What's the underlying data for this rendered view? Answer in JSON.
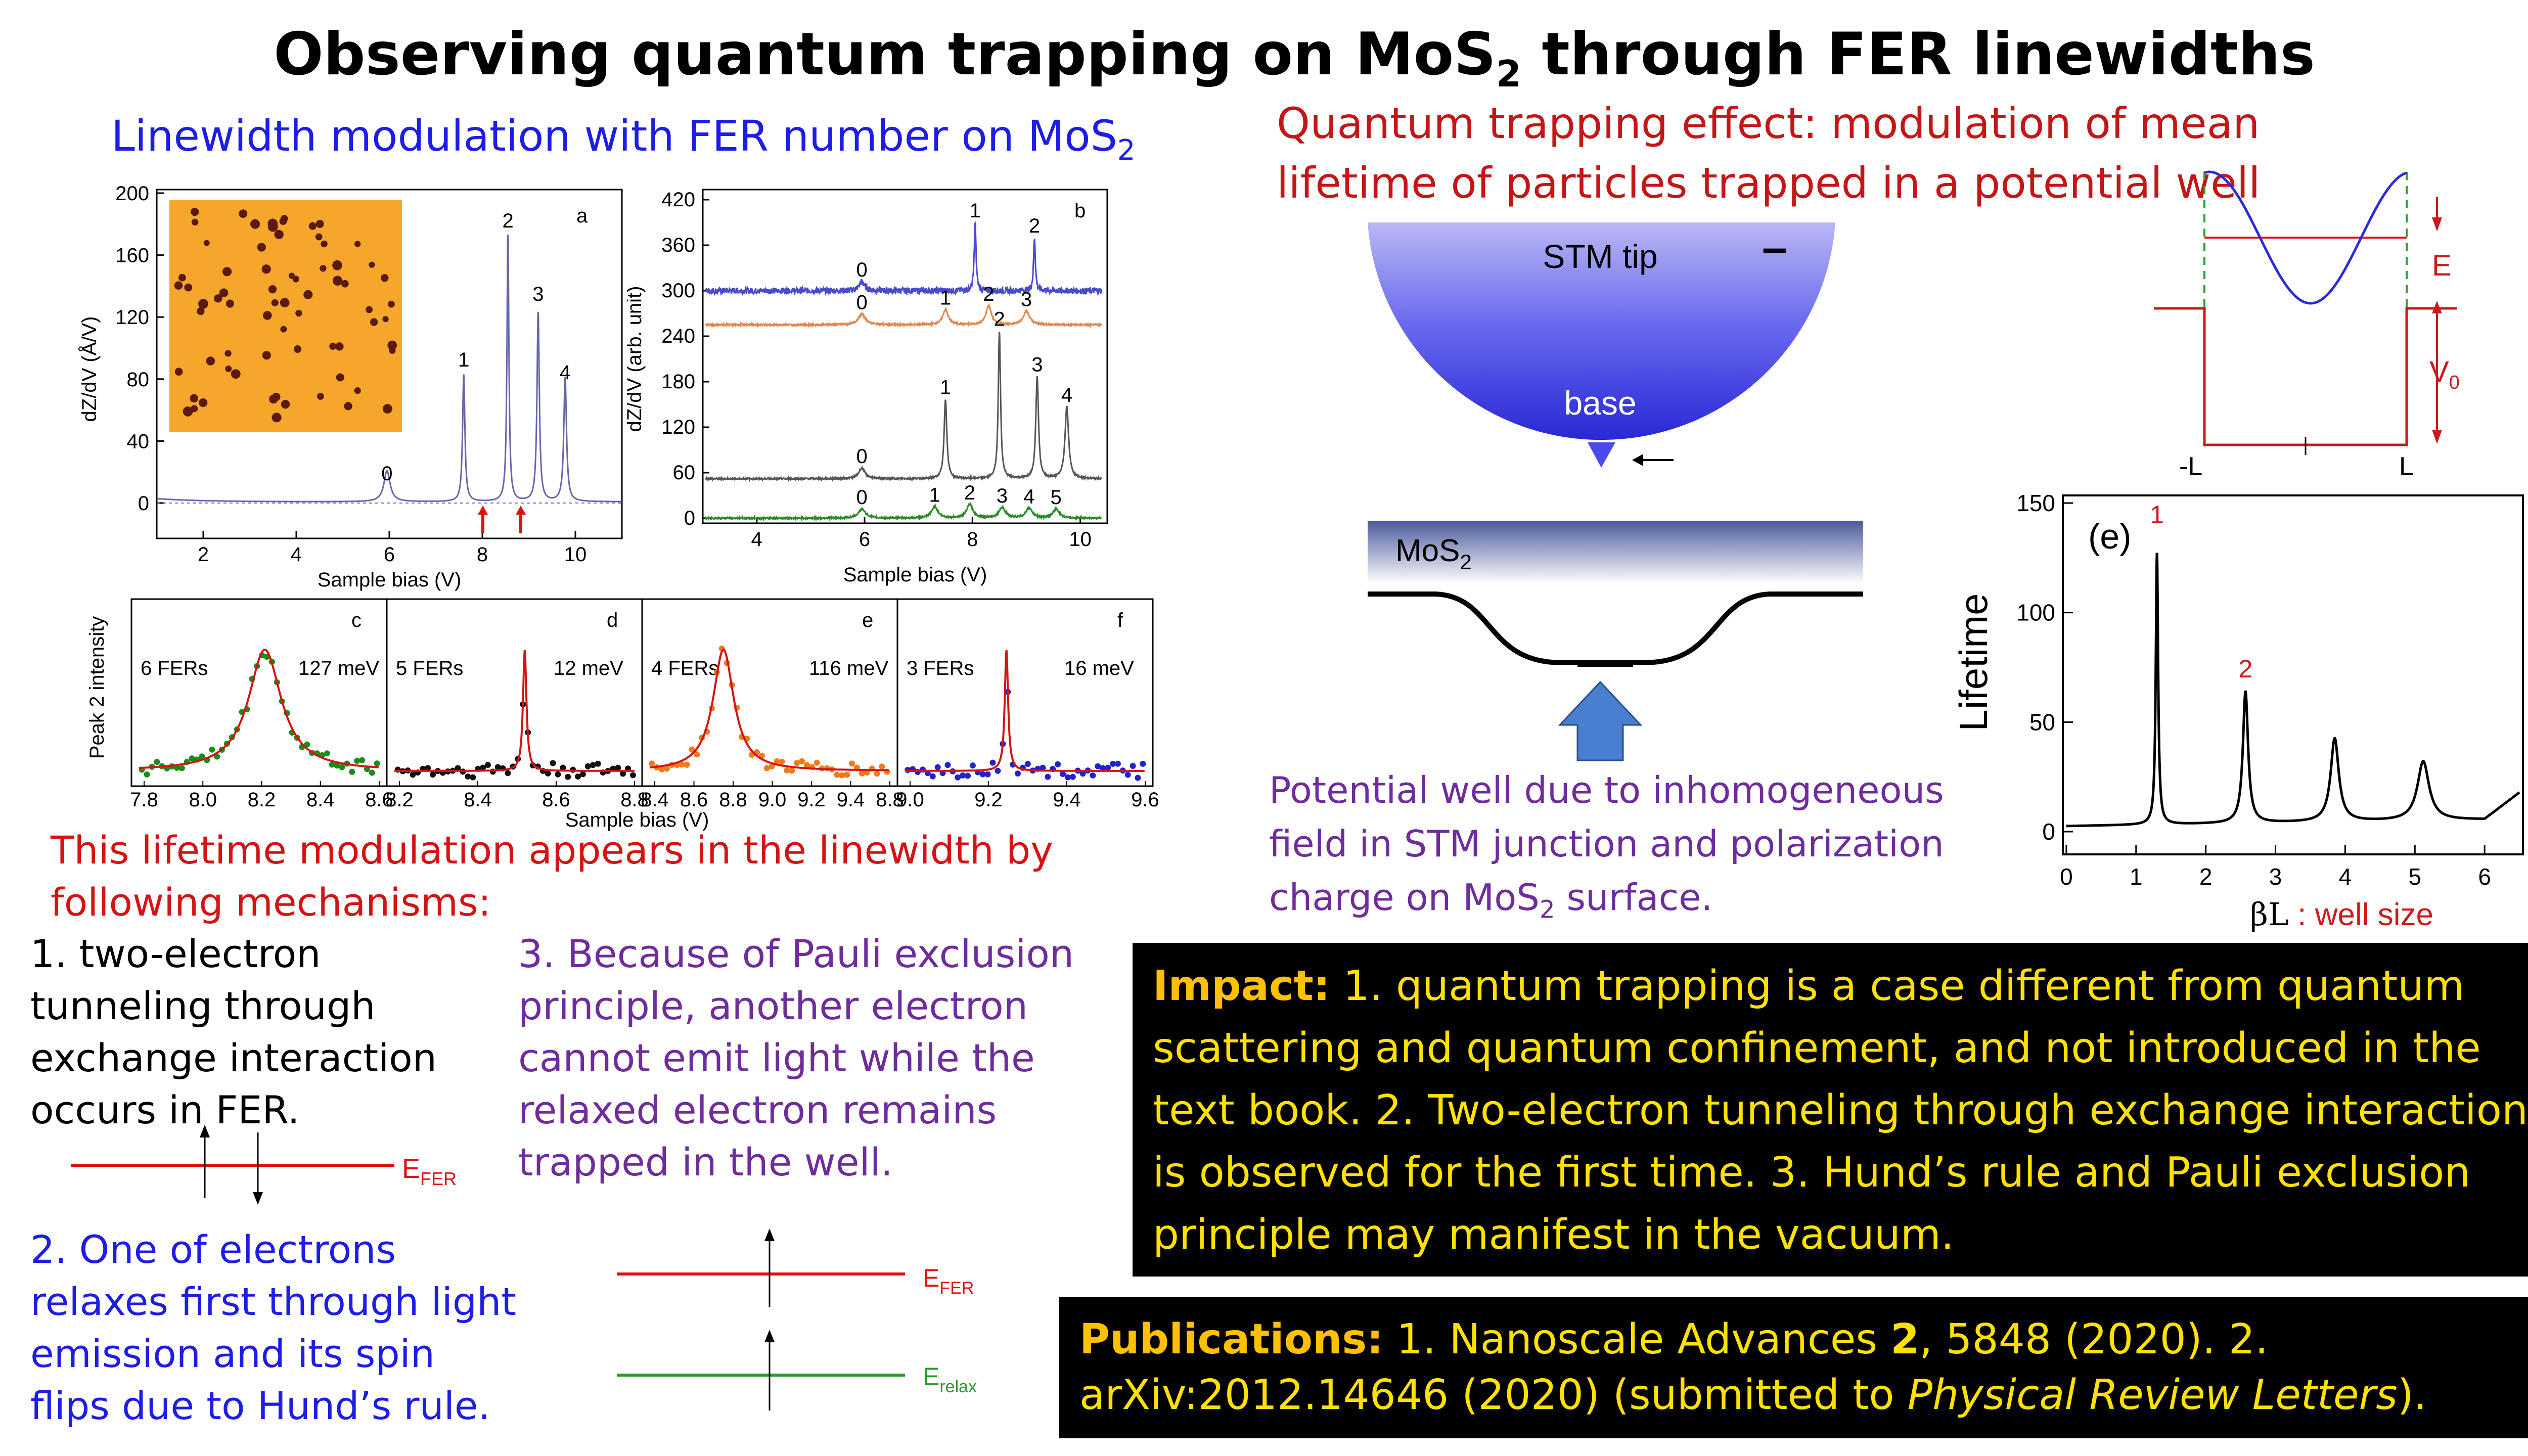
{
  "title": {
    "main": "Observing quantum trapping on MoS",
    "sub": "2",
    "rest": " through FER linewidths"
  },
  "left_heading": {
    "text": "Linewidth modulation with FER number on MoS",
    "sub": "2"
  },
  "panel_a": {
    "letter": "a",
    "ylabel": "dZ/dV (Å/V)",
    "xlabel": "Sample bias (V)",
    "yticks": [
      "200",
      "160",
      "120",
      "80",
      "40",
      "0"
    ],
    "xticks": [
      "2",
      "4",
      "6",
      "8",
      "10"
    ],
    "peaks": [
      "0",
      "1",
      "2",
      "3",
      "4"
    ]
  },
  "panel_b": {
    "letter": "b",
    "ylabel": "dZ/dV (arb. unit)",
    "xlabel": "Sample bias (V)",
    "yticks": [
      "420",
      "360",
      "300",
      "240",
      "180",
      "120",
      "60",
      "0"
    ],
    "xticks": [
      "4",
      "6",
      "8",
      "10"
    ],
    "peaks_top": [
      "0",
      "1",
      "2"
    ],
    "peaks_orange": [
      "0",
      "1",
      "2",
      "3"
    ],
    "peaks_black": [
      "0",
      "1",
      "2",
      "3",
      "4"
    ],
    "peaks_green": [
      "0",
      "1",
      "2",
      "3",
      "4",
      "5"
    ]
  },
  "small_panels": {
    "ylabel": "Peak 2 intensity",
    "xlabel": "Sample bias (V)",
    "panels": [
      {
        "letter": "c",
        "fers": "6 FERs",
        "width": "127 meV",
        "xticks": [
          "7.8",
          "8.0",
          "8.2",
          "8.4",
          "8.6"
        ],
        "color": "#1a8c1a"
      },
      {
        "letter": "d",
        "fers": "5 FERs",
        "width": "12 meV",
        "xticks": [
          "8.2",
          "8.4",
          "8.6",
          "8.8"
        ],
        "color": "#111111"
      },
      {
        "letter": "e",
        "fers": "4 FERs",
        "width": "116 meV",
        "xticks": [
          "8.4",
          "8.6",
          "8.8",
          "9.0",
          "9.2",
          "9.4",
          "8.8"
        ],
        "color": "#f07a1a"
      },
      {
        "letter": "f",
        "fers": "3 FERs",
        "width": "16 meV",
        "xticks": [
          "9.0",
          "9.2",
          "9.4",
          "9.6"
        ],
        "color": "#2222cc"
      }
    ]
  },
  "mechanisms_intro": "This lifetime modulation appears in the linewidth by following mechanisms:",
  "mech1": "1. two-electron tunneling through exchange interaction occurs in FER.",
  "mech2": "2. One  of electrons relaxes first through light emission and its spin flips due to Hund’s rule.",
  "mech3": "3. Because of Pauli exclusion principle, another electron cannot emit light while the relaxed electron remains trapped in the well.",
  "levels": {
    "e_fer": "E",
    "fer_sub": "FER",
    "e_relax": "E",
    "relax_sub": "relax"
  },
  "right_heading": "Quantum trapping effect: modulation of mean lifetime of particles trapped in a potential well",
  "stm": {
    "tip": "STM tip",
    "minus": "–",
    "base": "base",
    "mos2": "MoS",
    "mos2_sub": "2"
  },
  "potential_text": {
    "line1": "Potential well due to inhomogeneous",
    "line2": "field in STM junction and polarization",
    "line3a": "charge on MoS",
    "line3sub": "2",
    "line3b": " surface."
  },
  "well_diagram": {
    "E": "E",
    "V": "V",
    "V_sub": "0",
    "minusL": "-L",
    "L": "L"
  },
  "lifetime_plot": {
    "panel": "(e)",
    "ylabel": "Lifetime",
    "xlabel_beta": "βL",
    "xlabel_rest": " : well size",
    "yticks": [
      "150",
      "100",
      "50",
      "0"
    ],
    "xticks": [
      "0",
      "1",
      "2",
      "3",
      "4",
      "5",
      "6"
    ],
    "peak_labels": [
      "1",
      "2"
    ]
  },
  "impact": {
    "label": "Impact:",
    "text": " 1. quantum trapping is a case different from quantum scattering and quantum confinement, and not introduced in the text book. 2. Two-electron tunneling through exchange interaction is observed for the first time. 3. Hund’s rule and Pauli exclusion principle may manifest in the vacuum."
  },
  "publications": {
    "label": "Publications:",
    "t1": " 1. Nanoscale Advances ",
    "vol": "2",
    "t2": ", 5848 (2020).  2. arXiv:2012.14646 (2020) (submitted to ",
    "journal": "Physical Review Letters",
    "t3": ")."
  },
  "colors": {
    "red": "#c41616",
    "blue": "#1d1de6",
    "purple": "#6e2c9c",
    "green": "#1a8c1a",
    "yellow": "#ffe100",
    "orange": "#ffc000"
  }
}
